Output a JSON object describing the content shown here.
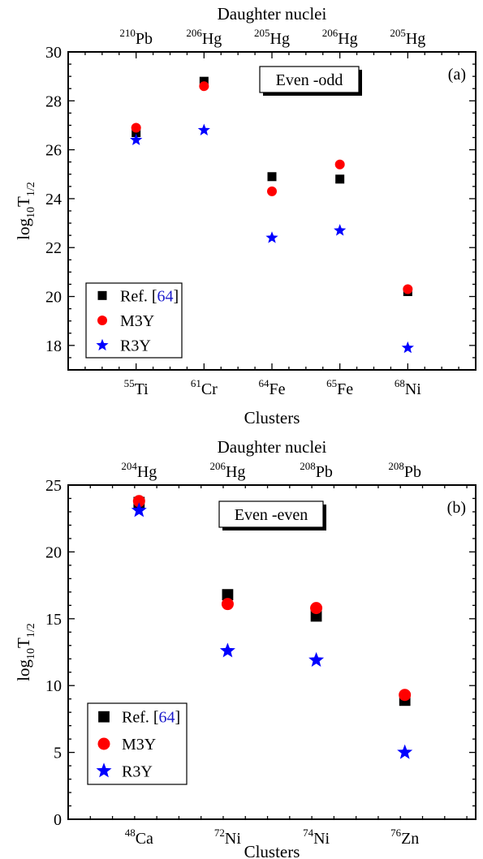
{
  "colors": {
    "ref": "#000000",
    "m3y": "#ff0000",
    "r3y": "#0000ff",
    "ref_link": "#1a1acc"
  },
  "chart_data": [
    {
      "type": "scatter",
      "panel_label": "(a)",
      "box_label": "Even -odd",
      "top_title": "Daughter nuclei",
      "xlabel": "Clusters",
      "ylabel": {
        "main": "log",
        "sub1": "10",
        "mid": "T",
        "sub2": "1/2"
      },
      "ylim": [
        17,
        30
      ],
      "yticks": [
        18,
        20,
        22,
        24,
        26,
        28,
        30
      ],
      "categories": [
        {
          "mass": "55",
          "sym": "Ti"
        },
        {
          "mass": "61",
          "sym": "Cr"
        },
        {
          "mass": "64",
          "sym": "Fe"
        },
        {
          "mass": "65",
          "sym": "Fe"
        },
        {
          "mass": "68",
          "sym": "Ni"
        }
      ],
      "top_categories": [
        {
          "mass": "210",
          "sym": "Pb"
        },
        {
          "mass": "206",
          "sym": "Hg"
        },
        {
          "mass": "205",
          "sym": "Hg"
        },
        {
          "mass": "206",
          "sym": "Hg"
        },
        {
          "mass": "205",
          "sym": "Hg"
        }
      ],
      "series": [
        {
          "key": "ref",
          "marker": "square",
          "values": [
            26.7,
            28.8,
            24.9,
            24.8,
            20.2
          ]
        },
        {
          "key": "m3y",
          "marker": "circle",
          "values": [
            26.9,
            28.6,
            24.3,
            25.4,
            20.3
          ]
        },
        {
          "key": "r3y",
          "marker": "star",
          "values": [
            26.4,
            26.8,
            22.4,
            22.7,
            17.9
          ]
        }
      ],
      "legend": {
        "placement": "bottom-left",
        "ref": {
          "text": "Ref. [",
          "link": "64",
          "close": "]"
        },
        "m3y": "M3Y",
        "r3y": "R3Y"
      }
    },
    {
      "type": "scatter",
      "panel_label": "(b)",
      "box_label": "Even -even",
      "top_title": "Daughter nuclei",
      "xlabel": "Clusters",
      "ylabel": {
        "main": "log",
        "sub1": "10",
        "mid": "T",
        "sub2": "1/2"
      },
      "ylim": [
        0,
        25
      ],
      "yticks": [
        0,
        5,
        10,
        15,
        20,
        25
      ],
      "categories": [
        {
          "mass": "48",
          "sym": "Ca"
        },
        {
          "mass": "72",
          "sym": "Ni"
        },
        {
          "mass": "74",
          "sym": "Ni"
        },
        {
          "mass": "76",
          "sym": "Zn"
        }
      ],
      "top_categories": [
        {
          "mass": "204",
          "sym": "Hg"
        },
        {
          "mass": "206",
          "sym": "Hg"
        },
        {
          "mass": "208",
          "sym": "Pb"
        },
        {
          "mass": "208",
          "sym": "Pb"
        }
      ],
      "series": [
        {
          "key": "ref",
          "marker": "square",
          "values": [
            23.7,
            16.8,
            15.2,
            8.9
          ]
        },
        {
          "key": "m3y",
          "marker": "circle",
          "values": [
            23.8,
            16.1,
            15.8,
            9.3
          ]
        },
        {
          "key": "r3y",
          "marker": "star",
          "values": [
            23.1,
            12.6,
            11.9,
            5.0
          ]
        }
      ],
      "legend": {
        "placement": "bottom-left",
        "ref": {
          "text": "Ref. [",
          "link": "64",
          "close": "]"
        },
        "m3y": "M3Y",
        "r3y": "R3Y"
      }
    }
  ]
}
